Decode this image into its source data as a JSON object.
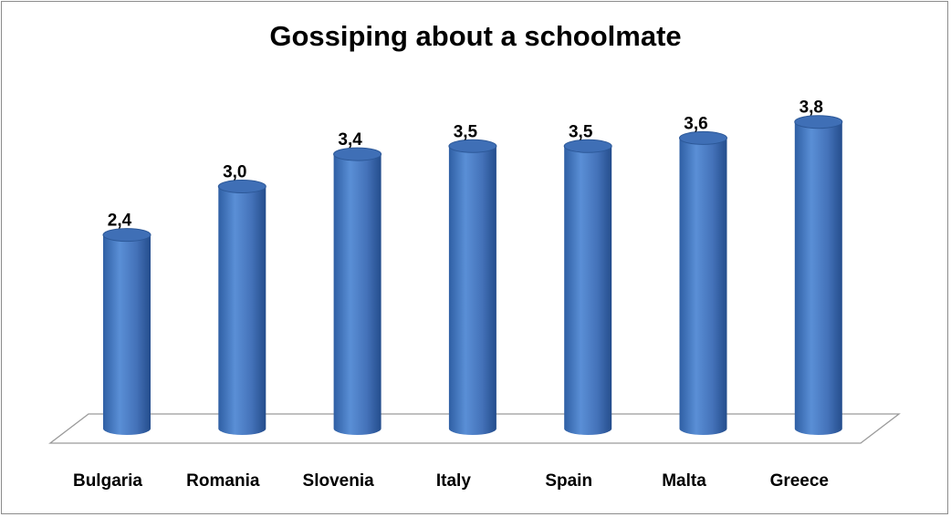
{
  "chart_data": {
    "type": "bar",
    "title": "Gossiping about a schoolmate",
    "categories": [
      "Bulgaria",
      "Romania",
      "Slovenia",
      "Italy",
      "Spain",
      "Malta",
      "Greece"
    ],
    "values": [
      2.4,
      3.0,
      3.4,
      3.5,
      3.5,
      3.6,
      3.8
    ],
    "value_labels": [
      "2,4",
      "3,0",
      "3,4",
      "3,5",
      "3,5",
      "3,6",
      "3,8"
    ],
    "bar_style": "3d-cylinder",
    "colors": {
      "bar": "#4a7cc4",
      "bar_dark": "#254f8f",
      "bar_top": "#3f6fb6",
      "floor": "#808080"
    },
    "grid": false,
    "legend": "none"
  }
}
